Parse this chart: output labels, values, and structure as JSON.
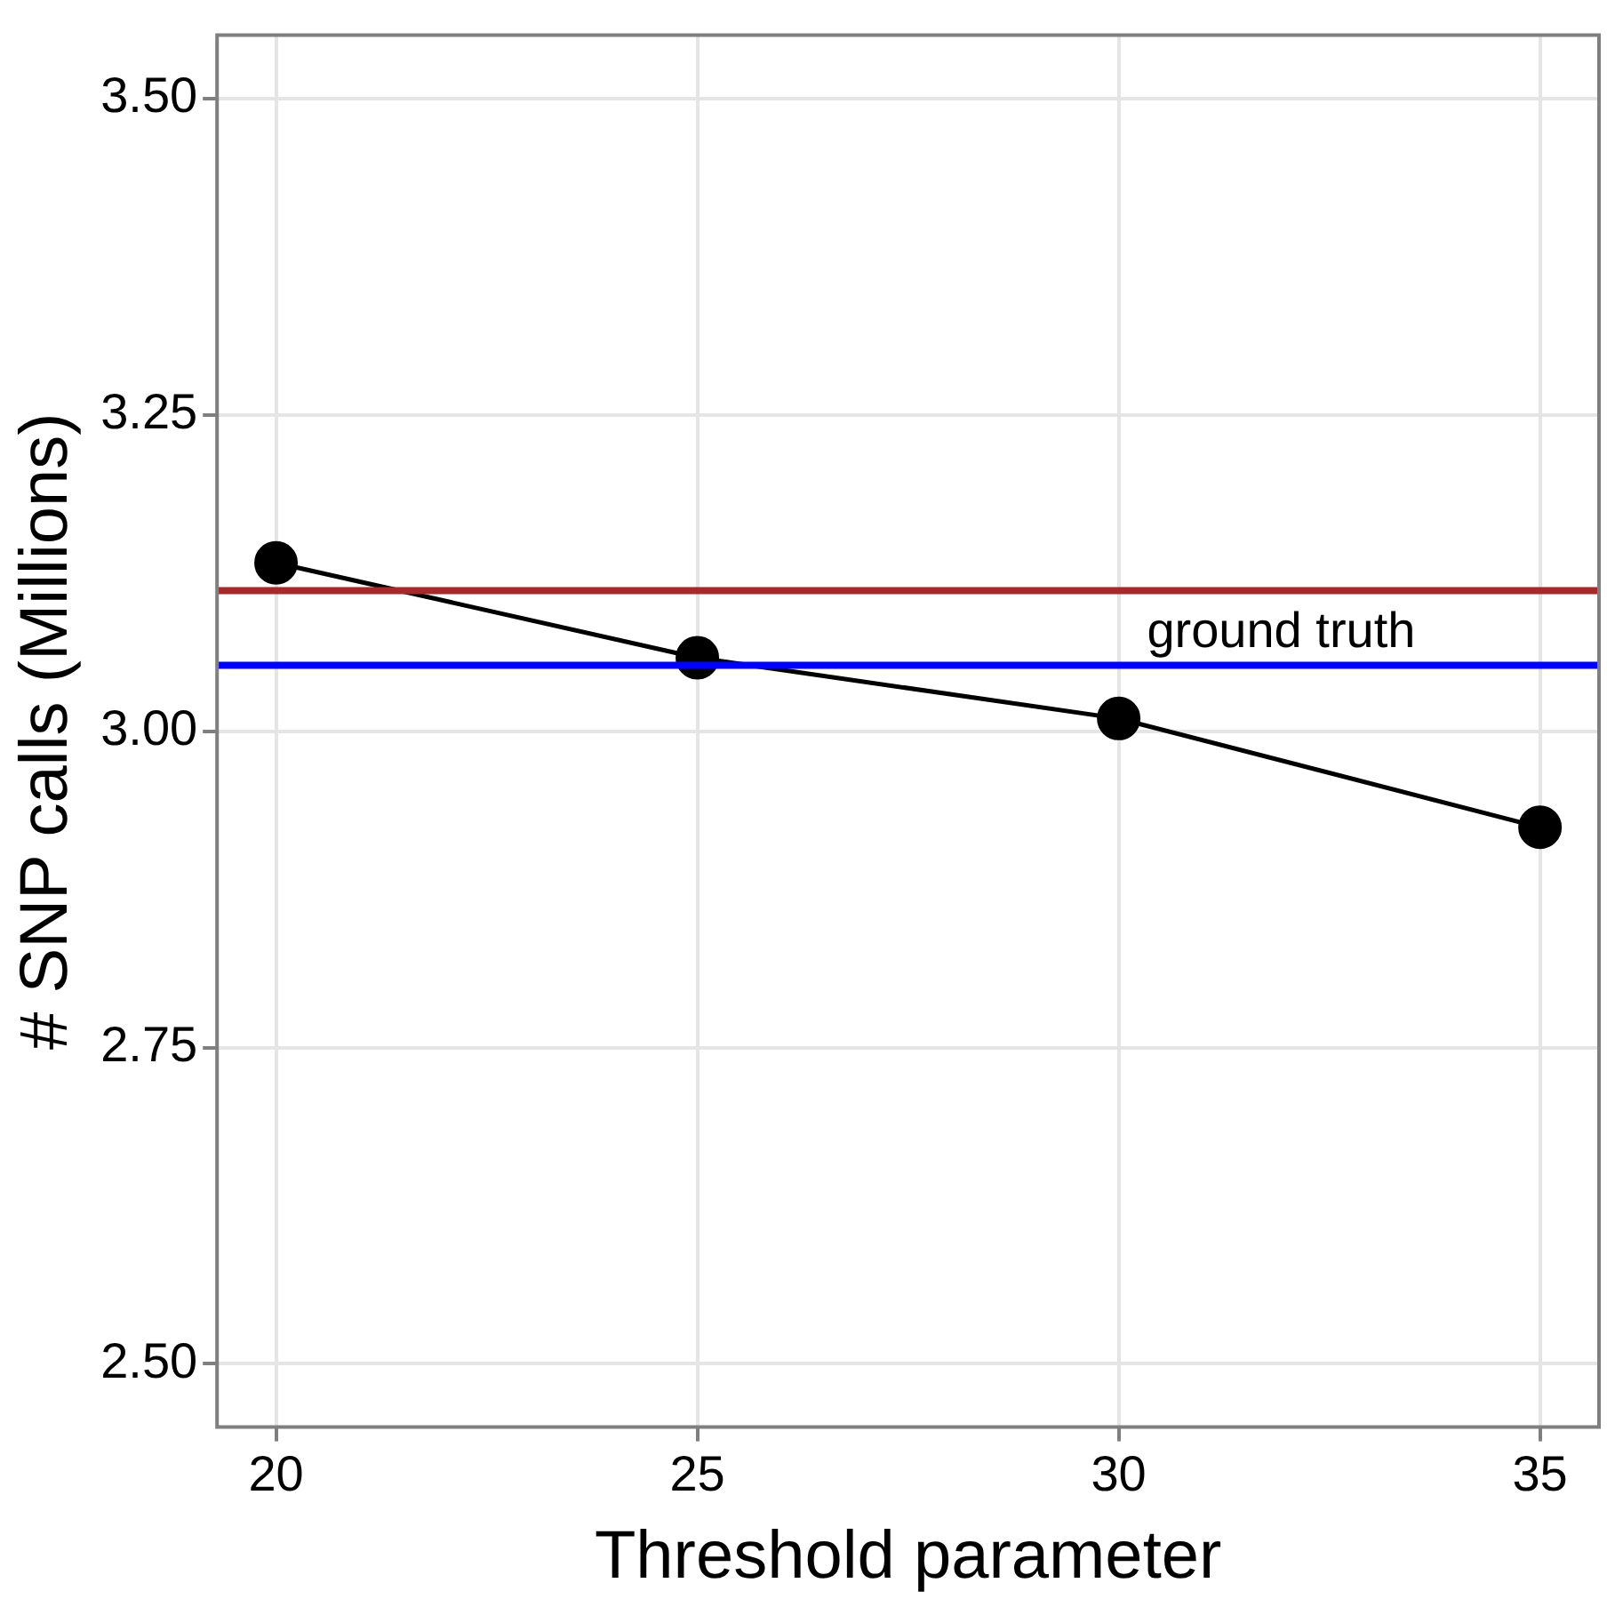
{
  "chart_data": {
    "type": "line",
    "xlabel": "Threshold parameter",
    "ylabel": "# SNP calls (Millions)",
    "x": [
      20,
      25,
      30,
      35
    ],
    "series": [
      {
        "color": "#000000",
        "values": [
          3.133,
          3.058,
          3.01,
          2.924
        ]
      }
    ],
    "xlim": [
      19.3,
      35.7
    ],
    "xticks": [
      20,
      25,
      30,
      35
    ],
    "ylim": [
      2.45,
      3.55
    ],
    "yticks": [
      {
        "value": 2.5,
        "label": "2.50"
      },
      {
        "value": 2.75,
        "label": "2.75"
      },
      {
        "value": 3,
        "label": "3.00"
      },
      {
        "value": 3.25,
        "label": "3.25"
      },
      {
        "value": 3.5,
        "label": "3.50"
      }
    ],
    "ref_lines": [
      {
        "axis": "y",
        "value": 3.111,
        "color": "#a52a2a"
      },
      {
        "axis": "y",
        "value": 3.052,
        "label": "ground truth",
        "color": "#0000ff"
      }
    ],
    "grid": true,
    "legend": false,
    "marker": "circle",
    "line_style": "solid"
  }
}
